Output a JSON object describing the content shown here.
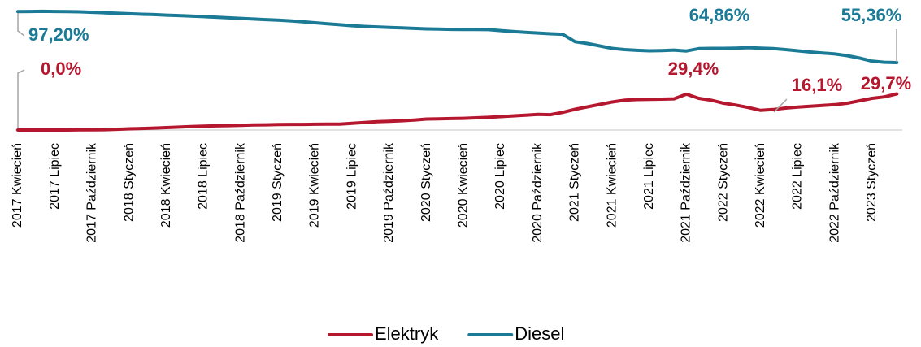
{
  "chart_data": {
    "type": "line",
    "categories": [
      "2017 Kwiecień",
      null,
      null,
      "2017 Lipiec",
      null,
      null,
      "2017 Październik",
      null,
      null,
      "2018 Styczeń",
      null,
      null,
      "2018 Kwiecień",
      null,
      null,
      "2018 Lipiec",
      null,
      null,
      "2018 Październik",
      null,
      null,
      "2019 Styczeń",
      null,
      null,
      "2019 Kwiecień",
      null,
      null,
      "2019 Lipiec",
      null,
      null,
      "2019 Październik",
      null,
      null,
      "2020 Styczeń",
      null,
      null,
      "2020 Kwiecień",
      null,
      null,
      "2020 Lipiec",
      null,
      null,
      "2020 Październik",
      null,
      null,
      "2021 Styczeń",
      null,
      null,
      "2021 Kwiecień",
      null,
      null,
      "2021 Lipiec",
      null,
      null,
      "2021 Październik",
      null,
      null,
      "2022 Styczeń",
      null,
      null,
      "2022 Kwiecień",
      null,
      null,
      "2022 Lipiec",
      null,
      null,
      "2022 Październik",
      null,
      null,
      "2023 Styczeń",
      null,
      null
    ],
    "series": [
      {
        "name": "Elektryk",
        "color": "#b5172f",
        "values": [
          0.0,
          0,
          0,
          0,
          0,
          0.1,
          0.2,
          0.3,
          0.6,
          1.0,
          1.3,
          1.6,
          2.0,
          2.4,
          2.8,
          3.2,
          3.4,
          3.6,
          3.9,
          4.1,
          4.3,
          4.5,
          4.6,
          4.6,
          4.7,
          4.8,
          4.8,
          5.5,
          6.2,
          6.8,
          7.2,
          7.6,
          8.2,
          9.0,
          9.2,
          9.4,
          9.6,
          10.0,
          10.4,
          11.0,
          11.6,
          12.2,
          12.8,
          12.6,
          14.5,
          17.0,
          19.0,
          21.0,
          23.0,
          24.5,
          25.0,
          25.2,
          25.3,
          25.6,
          29.4,
          26.0,
          24.5,
          22.0,
          20.5,
          18.5,
          16.1,
          16.8,
          18.0,
          18.8,
          19.5,
          20.2,
          20.8,
          22.0,
          24.0,
          26.0,
          27.2,
          29.7
        ],
        "value_labels": [
          "0,0%",
          null,
          null,
          null,
          null,
          null,
          null,
          null,
          null,
          null,
          null,
          null,
          null,
          null,
          null,
          null,
          null,
          null,
          null,
          null,
          null,
          null,
          null,
          null,
          null,
          null,
          null,
          null,
          null,
          null,
          null,
          null,
          null,
          null,
          null,
          null,
          null,
          null,
          null,
          null,
          null,
          null,
          null,
          null,
          null,
          null,
          null,
          null,
          null,
          null,
          null,
          null,
          null,
          null,
          "29,4%",
          null,
          null,
          null,
          null,
          null,
          "16,1%",
          null,
          null,
          null,
          null,
          null,
          null,
          null,
          null,
          null,
          null,
          "29,7%"
        ]
      },
      {
        "name": "Diesel",
        "color": "#1b7a96",
        "values": [
          97.2,
          97.3,
          97.4,
          97.3,
          97.2,
          97.0,
          96.6,
          96.2,
          95.8,
          95.4,
          95.0,
          94.7,
          94.3,
          93.9,
          93.5,
          93.1,
          92.6,
          92.1,
          91.6,
          91.1,
          90.6,
          90.2,
          89.6,
          88.8,
          88.0,
          87.2,
          86.4,
          85.6,
          85.0,
          84.6,
          84.2,
          83.8,
          83.4,
          83.0,
          82.8,
          82.6,
          82.5,
          82.5,
          82.4,
          81.6,
          80.8,
          80.2,
          79.6,
          79.0,
          78.6,
          72.5,
          71.0,
          69.0,
          67.0,
          66.0,
          65.4,
          65.0,
          65.2,
          65.6,
          64.86,
          66.8,
          67.0,
          67.0,
          67.2,
          67.6,
          67.2,
          66.8,
          66.0,
          65.0,
          64.0,
          63.2,
          62.4,
          61.0,
          59.0,
          56.5,
          55.6,
          55.36
        ],
        "value_labels": [
          "97,20%",
          null,
          null,
          null,
          null,
          null,
          null,
          null,
          null,
          null,
          null,
          null,
          null,
          null,
          null,
          null,
          null,
          null,
          null,
          null,
          null,
          null,
          null,
          null,
          null,
          null,
          null,
          null,
          null,
          null,
          null,
          null,
          null,
          null,
          null,
          null,
          null,
          null,
          null,
          null,
          null,
          null,
          null,
          null,
          null,
          null,
          null,
          null,
          null,
          null,
          null,
          null,
          null,
          null,
          "64,86%",
          null,
          null,
          null,
          null,
          null,
          null,
          null,
          null,
          null,
          null,
          null,
          null,
          null,
          null,
          null,
          null,
          "55,36%"
        ]
      }
    ],
    "ylim": [
      0,
      100
    ]
  }
}
